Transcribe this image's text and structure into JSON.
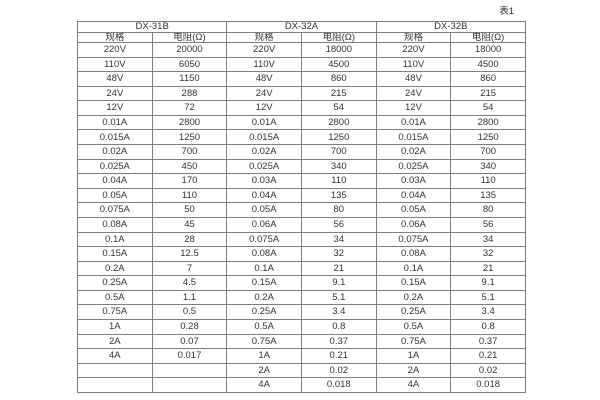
{
  "caption": "表1",
  "colors": {
    "border": "#7f7f7f",
    "text": "#333333",
    "background": "#ffffff"
  },
  "table": {
    "groups": [
      {
        "name": "DX-31B"
      },
      {
        "name": "DX-32A"
      },
      {
        "name": "DX-32B"
      }
    ],
    "sub_headers": {
      "spec": "规格",
      "resistance": "电阻(Ω)"
    },
    "rows": [
      [
        "220V",
        "20000",
        "220V",
        "18000",
        "220V",
        "18000"
      ],
      [
        "110V",
        "6050",
        "110V",
        "4500",
        "110V",
        "4500"
      ],
      [
        "48V",
        "1150",
        "48V",
        "860",
        "48V",
        "860"
      ],
      [
        "24V",
        "288",
        "24V",
        "215",
        "24V",
        "215"
      ],
      [
        "12V",
        "72",
        "12V",
        "54",
        "12V",
        "54"
      ],
      [
        "0.01A",
        "2800",
        "0.01A",
        "2800",
        "0.01A",
        "2800"
      ],
      [
        "0.015A",
        "1250",
        "0.015A",
        "1250",
        "0.015A",
        "1250"
      ],
      [
        "0.02A",
        "700",
        "0.02A",
        "700",
        "0.02A",
        "700"
      ],
      [
        "0.025A",
        "450",
        "0.025A",
        "340",
        "0.025A",
        "340"
      ],
      [
        "0.04A",
        "170",
        "0.03A",
        "110",
        "0.03A",
        "110"
      ],
      [
        "0.05A",
        "110",
        "0.04A",
        "135",
        "0.04A",
        "135"
      ],
      [
        "0.075A",
        "50",
        "0.05A",
        "80",
        "0.05A",
        "80"
      ],
      [
        "0.08A",
        "45",
        "0.06A",
        "56",
        "0.06A",
        "56"
      ],
      [
        "0.1A",
        "28",
        "0.075A",
        "34",
        "0.075A",
        "34"
      ],
      [
        "0.15A",
        "12.5",
        "0.08A",
        "32",
        "0.08A",
        "32"
      ],
      [
        "0.2A",
        "7",
        "0.1A",
        "21",
        "0.1A",
        "21"
      ],
      [
        "0.25A",
        "4.5",
        "0.15A",
        "9.1",
        "0.15A",
        "9.1"
      ],
      [
        "0.5A",
        "1.1",
        "0.2A",
        "5.1",
        "0.2A",
        "5.1"
      ],
      [
        "0.75A",
        "0.5",
        "0.25A",
        "3.4",
        "0.25A",
        "3.4"
      ],
      [
        "1A",
        "0.28",
        "0.5A",
        "0.8",
        "0.5A",
        "0.8"
      ],
      [
        "2A",
        "0.07",
        "0.75A",
        "0.37",
        "0.75A",
        "0.37"
      ],
      [
        "4A",
        "0.017",
        "1A",
        "0.21",
        "1A",
        "0.21"
      ],
      [
        "",
        "",
        "2A",
        "0.02",
        "2A",
        "0.02"
      ],
      [
        "",
        "",
        "4A",
        "0.018",
        "4A",
        "0.018"
      ]
    ]
  }
}
